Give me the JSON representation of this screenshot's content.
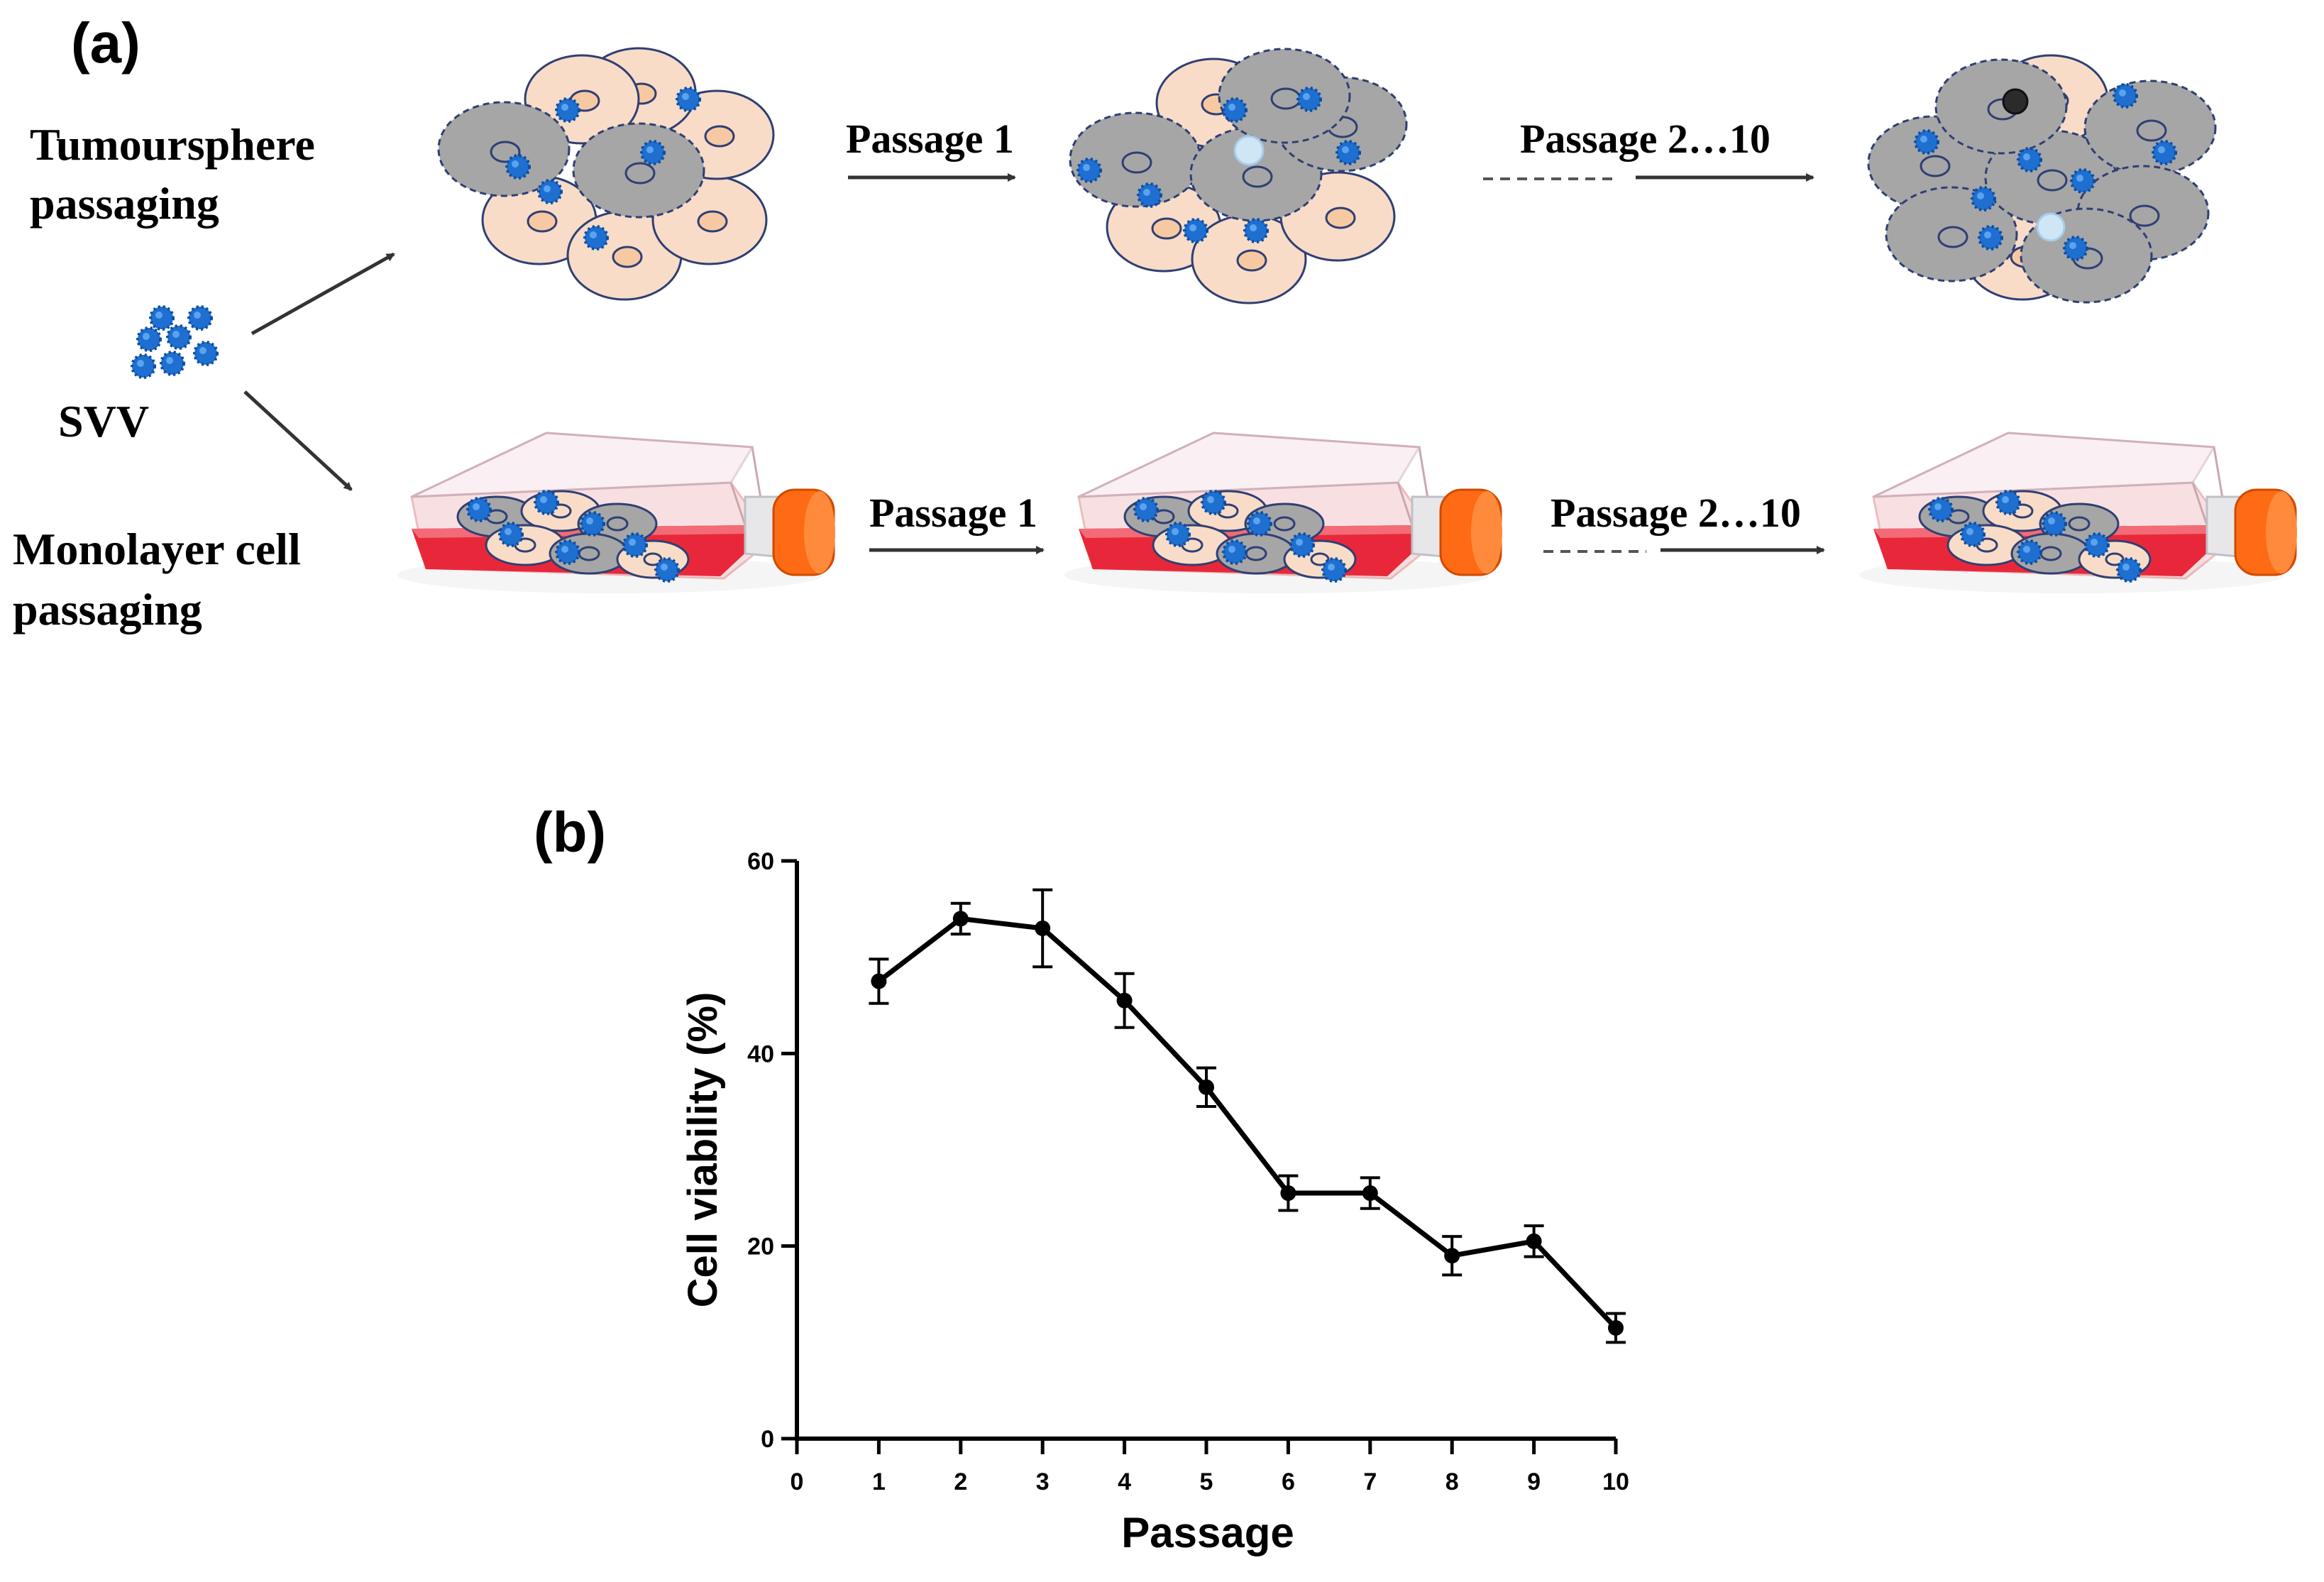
{
  "panel_a": {
    "label": "(a)",
    "svv_label": "SVV",
    "row_tumoursphere": {
      "label_line1": "Tumoursphere",
      "label_line2": "passaging"
    },
    "row_monolayer": {
      "label_line1": "Monolayer cell",
      "label_line2": "passaging"
    },
    "arrow_passage_1": "Passage 1",
    "arrow_passage_2_10": "Passage 2…10",
    "colors": {
      "cell_fill": "#f8dcc8",
      "infected_cell_fill": "#a6a6a6",
      "cell_stroke": "#2f3f73",
      "nucleus_fill": "#f7c9a3",
      "virus": "#1f6fd1",
      "medium": "#e8283a",
      "cap": "#ff6a14"
    }
  },
  "panel_b": {
    "label": "(b)",
    "chart_data": {
      "type": "line",
      "xlabel": "Passage",
      "ylabel": "Cell viability (%)",
      "x": [
        1,
        2,
        3,
        4,
        5,
        6,
        7,
        8,
        9,
        10
      ],
      "xticks": [
        "0",
        "1",
        "2",
        "3",
        "4",
        "5",
        "6",
        "7",
        "8",
        "9",
        "10"
      ],
      "yticks": [
        "0",
        "20",
        "40",
        "60"
      ],
      "xlim": [
        0,
        10
      ],
      "ylim": [
        0,
        60
      ],
      "series": [
        {
          "values": [
            47.5,
            54.0,
            53.0,
            45.5,
            36.5,
            25.5,
            25.5,
            19.0,
            20.5,
            11.5
          ],
          "error": [
            2.3,
            1.6,
            4.0,
            2.8,
            2.0,
            1.8,
            1.6,
            2.0,
            1.6,
            1.5
          ]
        }
      ],
      "grid": false,
      "legend": "none"
    }
  }
}
